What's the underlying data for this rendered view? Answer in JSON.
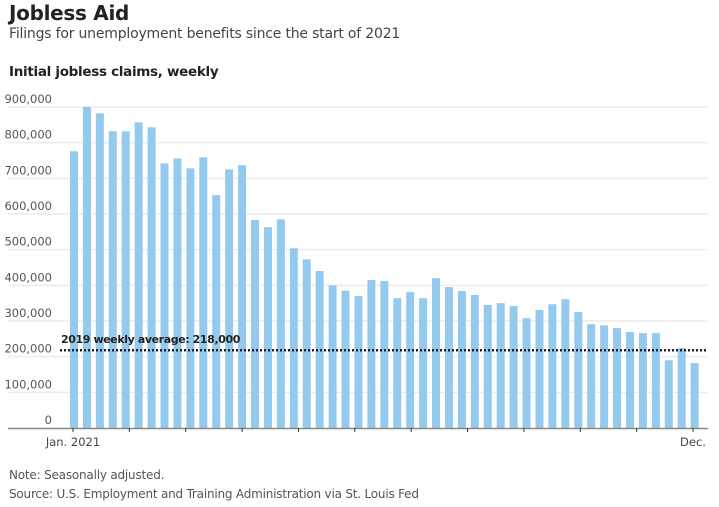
{
  "header": {
    "title": "Jobless Aid",
    "subtitle": "Filings for unemployment benefits since the start of 2021",
    "chart_heading": "Initial jobless claims, weekly"
  },
  "footer": {
    "note": "Note: Seasonally adjusted.",
    "source": "Source: U.S. Employment and Training Administration via St. Louis Fed"
  },
  "colors": {
    "bar": "#94caee",
    "grid": "#ececec",
    "axis": "#888888",
    "reference_line": "#222222"
  },
  "chart_data": {
    "type": "bar",
    "title": "Initial jobless claims, weekly",
    "xlabel": "",
    "ylabel": "",
    "ylim": [
      0,
      900000
    ],
    "grid": true,
    "yticks": [
      0,
      100000,
      200000,
      300000,
      400000,
      500000,
      600000,
      700000,
      800000,
      900000
    ],
    "ytick_labels": [
      "0",
      "100,000",
      "200,000",
      "300,000",
      "400,000",
      "500,000",
      "600,000",
      "700,000",
      "800,000",
      "900,000"
    ],
    "xtick_labels": [
      {
        "label": "Jan. 2021",
        "bar_index": 0
      },
      {
        "label": "Dec.",
        "bar_index": 48
      }
    ],
    "month_tick_count": 12,
    "series": [
      {
        "name": "Initial jobless claims",
        "values": [
          776000,
          900000,
          882000,
          832000,
          832000,
          857000,
          843000,
          742000,
          756000,
          728000,
          759000,
          653000,
          725000,
          737000,
          583000,
          563000,
          585000,
          504000,
          473000,
          440000,
          400000,
          385000,
          370000,
          415000,
          412000,
          364000,
          381000,
          364000,
          420000,
          395000,
          384000,
          373000,
          345000,
          350000,
          342000,
          308000,
          331000,
          347000,
          361000,
          325000,
          291000,
          288000,
          280000,
          269000,
          266000,
          266000,
          190000,
          224000,
          182000
        ]
      }
    ],
    "annotations": [
      {
        "type": "reference_line",
        "value": 218000,
        "label": "2019 weekly average: 218,000",
        "style": "dotted"
      }
    ]
  }
}
